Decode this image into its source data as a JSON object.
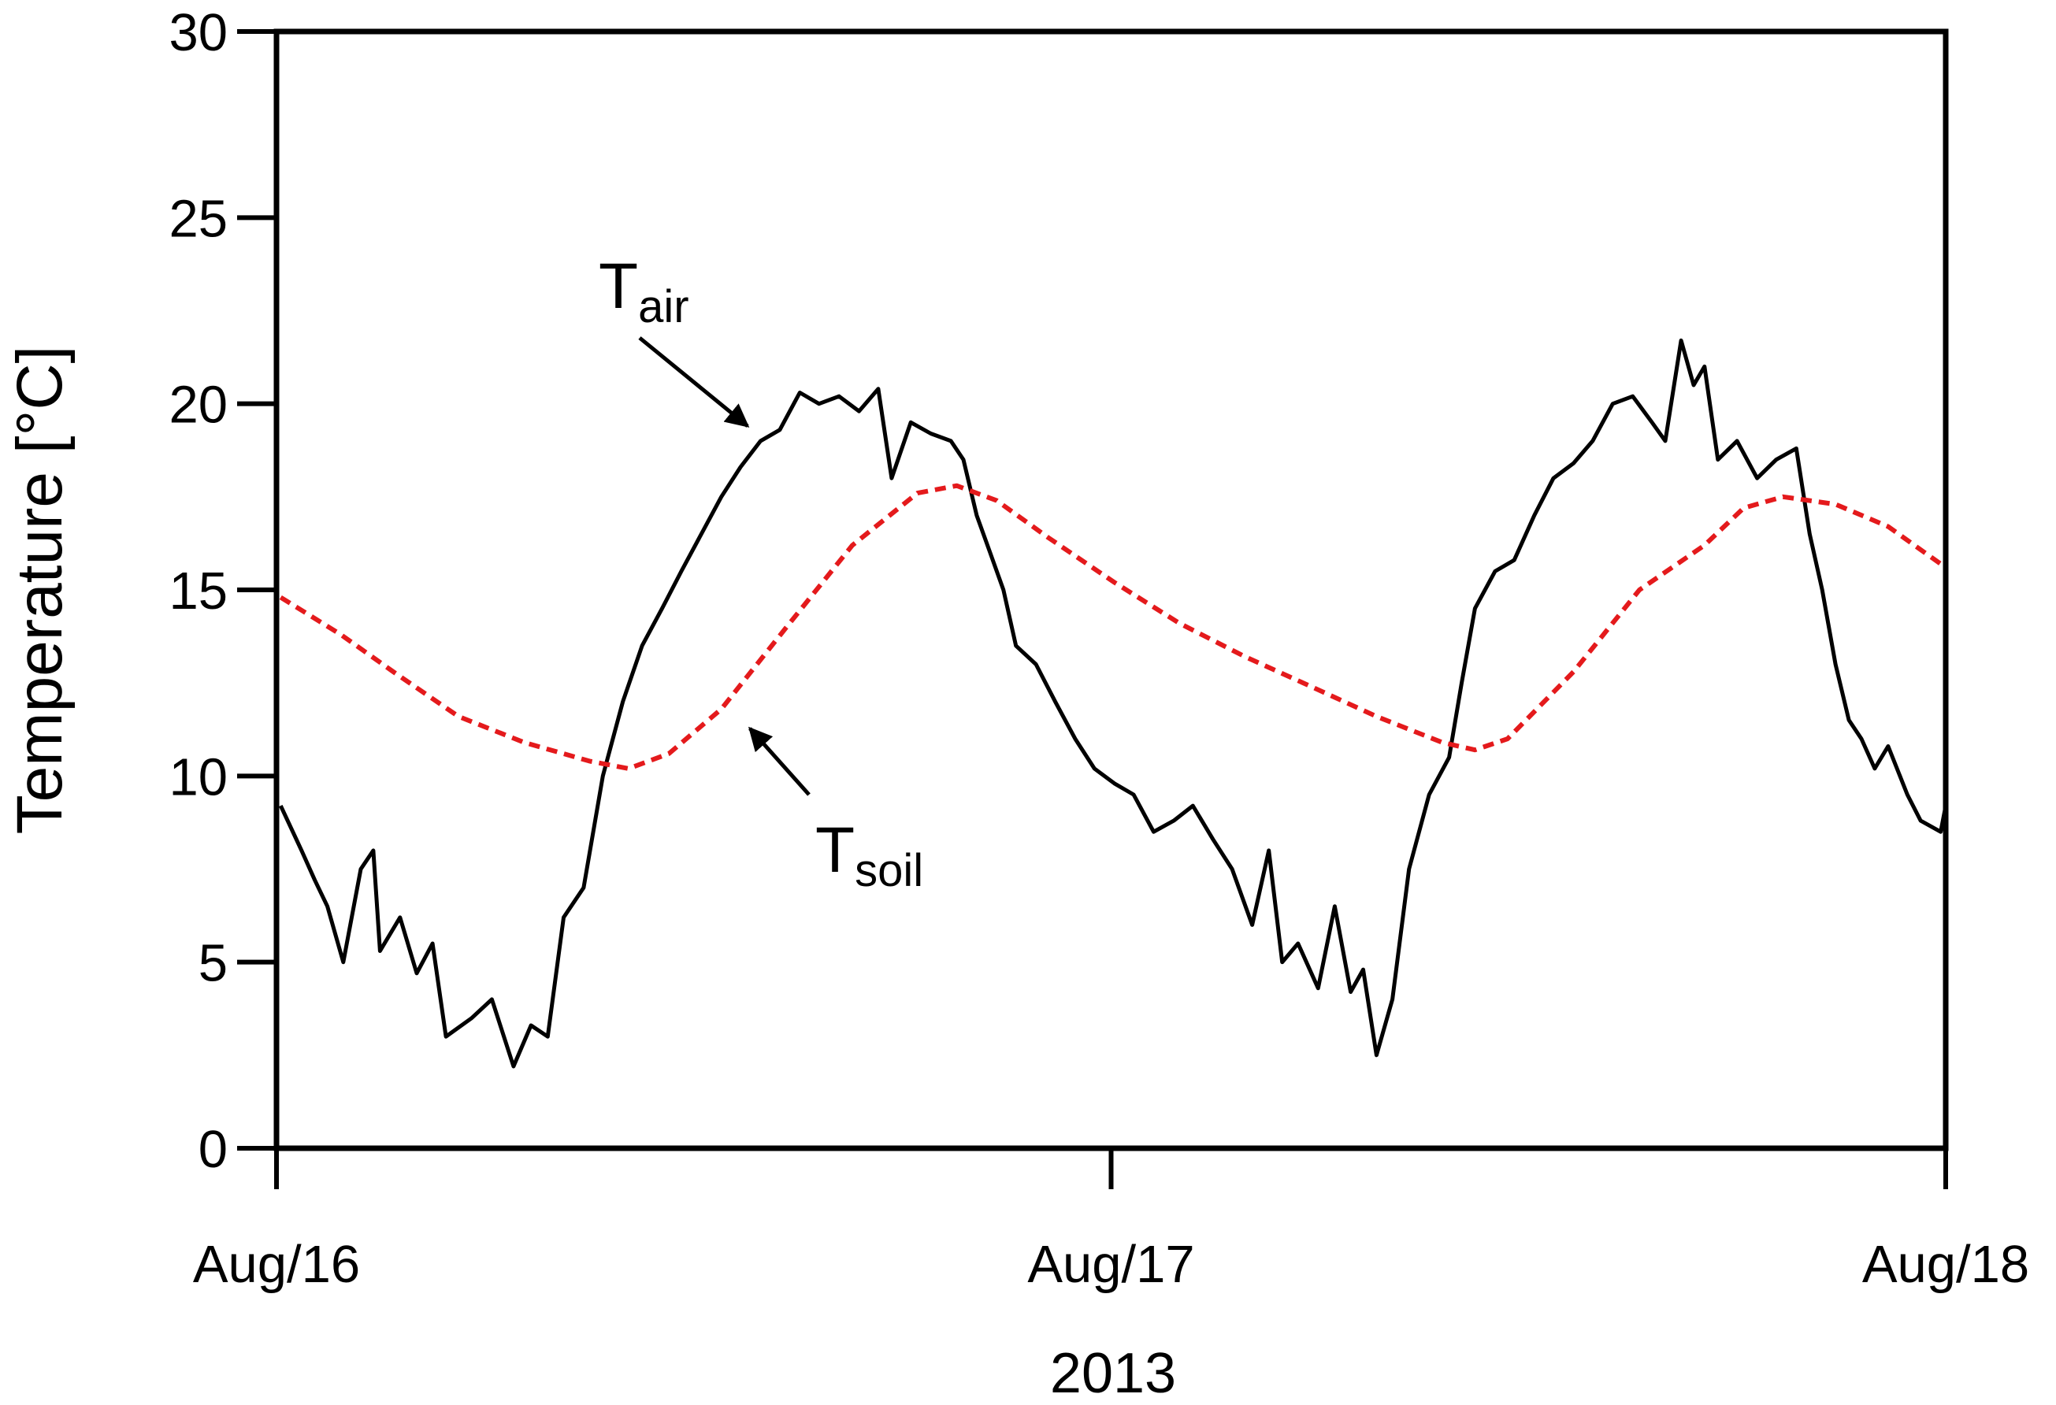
{
  "chart_data": {
    "type": "line",
    "xlabel": "2013",
    "ylabel": "Temperature [°C]",
    "xlim": [
      0,
      2
    ],
    "xticks": [
      {
        "value": 0,
        "label": "Aug/16"
      },
      {
        "value": 1,
        "label": "Aug/17"
      },
      {
        "value": 2,
        "label": "Aug/18"
      }
    ],
    "ylim": [
      0,
      30
    ],
    "yticks": [
      0,
      5,
      10,
      15,
      20,
      25,
      30
    ],
    "series": [
      {
        "color": "#000000",
        "dash": false,
        "x": [
          0.005,
          0.03,
          0.046,
          0.061,
          0.08,
          0.101,
          0.116,
          0.124,
          0.148,
          0.168,
          0.187,
          0.203,
          0.234,
          0.258,
          0.284,
          0.305,
          0.325,
          0.344,
          0.368,
          0.391,
          0.415,
          0.438,
          0.462,
          0.485,
          0.509,
          0.533,
          0.556,
          0.58,
          0.603,
          0.627,
          0.65,
          0.674,
          0.698,
          0.721,
          0.737,
          0.76,
          0.784,
          0.808,
          0.823,
          0.839,
          0.855,
          0.871,
          0.886,
          0.91,
          0.933,
          0.957,
          0.98,
          1.004,
          1.027,
          1.051,
          1.075,
          1.098,
          1.122,
          1.145,
          1.169,
          1.189,
          1.205,
          1.224,
          1.248,
          1.268,
          1.287,
          1.302,
          1.318,
          1.337,
          1.357,
          1.381,
          1.405,
          1.42,
          1.436,
          1.46,
          1.483,
          1.507,
          1.53,
          1.554,
          1.577,
          1.601,
          1.625,
          1.648,
          1.664,
          1.683,
          1.698,
          1.711,
          1.727,
          1.75,
          1.774,
          1.797,
          1.821,
          1.837,
          1.852,
          1.868,
          1.884,
          1.899,
          1.915,
          1.931,
          1.954,
          1.97,
          1.994,
          2.0
        ],
        "values": [
          9.2,
          8.0,
          7.2,
          6.5,
          5.0,
          7.5,
          8.0,
          5.3,
          6.2,
          4.7,
          5.5,
          3.0,
          3.5,
          4.0,
          2.2,
          3.3,
          3.0,
          6.2,
          7.0,
          10.0,
          12.0,
          13.5,
          14.5,
          15.5,
          16.5,
          17.5,
          18.3,
          19.0,
          19.3,
          20.3,
          20.0,
          20.2,
          19.8,
          20.4,
          18.0,
          19.5,
          19.2,
          19.0,
          18.5,
          17.0,
          16.0,
          15.0,
          13.5,
          13.0,
          12.0,
          11.0,
          10.2,
          9.8,
          9.5,
          8.5,
          8.8,
          9.2,
          8.3,
          7.5,
          6.0,
          8.0,
          5.0,
          5.5,
          4.3,
          6.5,
          4.2,
          4.8,
          2.5,
          4.0,
          7.5,
          9.5,
          10.5,
          12.5,
          14.5,
          15.5,
          15.8,
          17.0,
          18.0,
          18.4,
          19.0,
          20.0,
          20.2,
          19.5,
          19.0,
          21.7,
          20.5,
          21.0,
          18.5,
          19.0,
          18.0,
          18.5,
          18.8,
          16.5,
          15.0,
          13.0,
          11.5,
          11.0,
          10.2,
          10.8,
          9.5,
          8.8,
          8.5,
          9.2
        ]
      },
      {
        "color": "#e41a1c",
        "dash": true,
        "x": [
          0.005,
          0.077,
          0.14,
          0.218,
          0.297,
          0.375,
          0.422,
          0.47,
          0.533,
          0.611,
          0.69,
          0.768,
          0.815,
          0.863,
          0.925,
          1.004,
          1.082,
          1.161,
          1.24,
          1.318,
          1.397,
          1.436,
          1.475,
          1.554,
          1.633,
          1.711,
          1.758,
          1.805,
          1.868,
          1.931,
          2.0
        ],
        "values": [
          14.8,
          13.8,
          12.8,
          11.6,
          10.9,
          10.4,
          10.2,
          10.6,
          11.8,
          14.0,
          16.2,
          17.6,
          17.8,
          17.4,
          16.4,
          15.2,
          14.1,
          13.2,
          12.4,
          11.6,
          10.9,
          10.7,
          11.0,
          12.8,
          15.0,
          16.2,
          17.2,
          17.5,
          17.3,
          16.7,
          15.6
        ]
      }
    ],
    "annotations": [
      {
        "text": "T",
        "sub": "air"
      },
      {
        "text": "T",
        "sub": "soil"
      }
    ]
  }
}
